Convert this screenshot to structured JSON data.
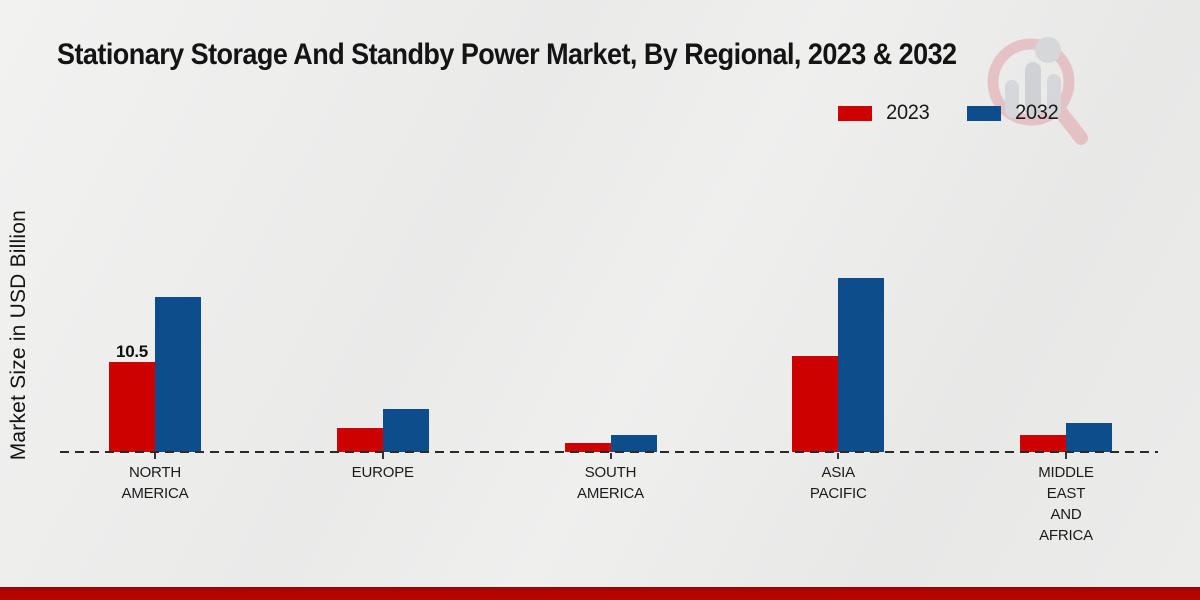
{
  "colors": {
    "series_2023": "#cc0100",
    "series_2032": "#0e4d8c",
    "footer_stripe": "#b30400",
    "axis": "#2a2a2a",
    "background": "#ececeb"
  },
  "icons": {
    "watermark": "magnifier-over-bar-chart-logo"
  },
  "footer": {},
  "chart_data": {
    "type": "bar",
    "title": "Stationary Storage And Standby Power Market, By Regional, 2023 & 2032",
    "xlabel": "",
    "ylabel": "Market Size in USD Billion",
    "categories": [
      "NORTH AMERICA",
      "EUROPE",
      "SOUTH AMERICA",
      "ASIA PACIFIC",
      "MIDDLE EAST AND AFRICA"
    ],
    "series": [
      {
        "name": "2023",
        "color": "#cc0100",
        "values": [
          10.5,
          2.8,
          1.1,
          11.2,
          2.0
        ]
      },
      {
        "name": "2032",
        "color": "#0e4d8c",
        "values": [
          18.1,
          5.0,
          2.0,
          20.3,
          3.4
        ]
      }
    ],
    "annotations": [
      {
        "series_index": 0,
        "category_index": 0,
        "text": "10.5"
      }
    ],
    "ylim": [
      0,
      22
    ],
    "grid": false,
    "legend_position": "top-right",
    "baseline_style": "dashed"
  }
}
